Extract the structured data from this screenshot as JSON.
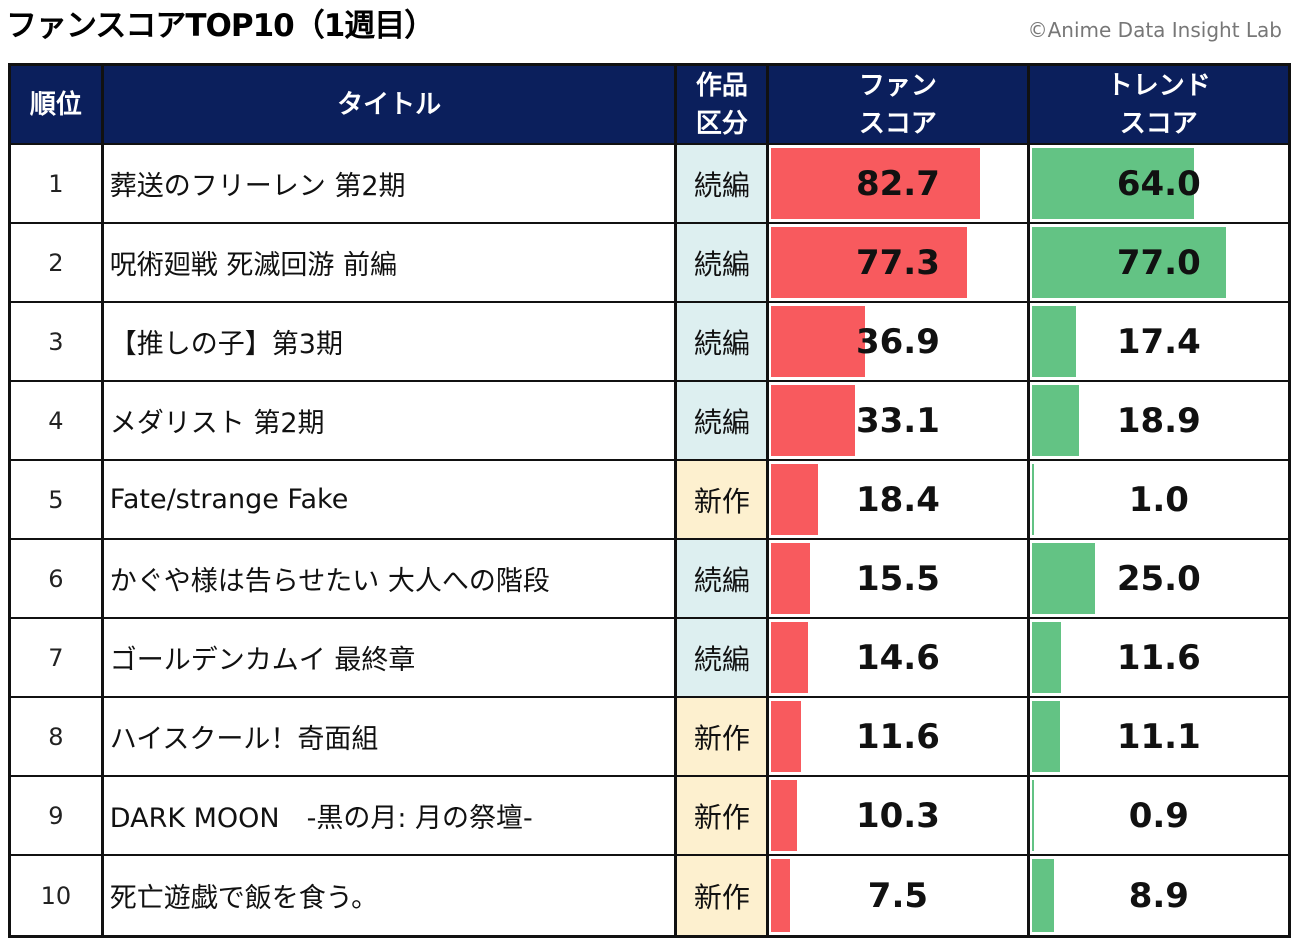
{
  "title": "ファンスコアTOP10（1週目）",
  "credit": "©Anime Data Insight Lab",
  "colors": {
    "header": "#0B1F5C",
    "fan_bar": "#F85A5E",
    "trend_bar": "#63C384",
    "sequel_bg": "#DDEFF0",
    "new_bg": "#FDF0CF"
  },
  "chart_data": {
    "type": "table",
    "headers": [
      "順位",
      "タイトル",
      "作品\n区分",
      "ファン\nスコア",
      "トレンド\nスコア"
    ],
    "bar_max": 100,
    "rows": [
      {
        "rank": "1",
        "title": "葬送のフリーレン 第2期",
        "category": "続編",
        "fan": "82.7",
        "trend": "64.0"
      },
      {
        "rank": "2",
        "title": "呪術廻戦 死滅回游 前編",
        "category": "続編",
        "fan": "77.3",
        "trend": "77.0"
      },
      {
        "rank": "3",
        "title": "【推しの子】第3期",
        "category": "続編",
        "fan": "36.9",
        "trend": "17.4"
      },
      {
        "rank": "4",
        "title": "メダリスト 第2期",
        "category": "続編",
        "fan": "33.1",
        "trend": "18.9"
      },
      {
        "rank": "5",
        "title": "Fate/strange Fake",
        "category": "新作",
        "fan": "18.4",
        "trend": "1.0"
      },
      {
        "rank": "6",
        "title": "かぐや様は告らせたい 大人への階段",
        "category": "続編",
        "fan": "15.5",
        "trend": "25.0"
      },
      {
        "rank": "7",
        "title": "ゴールデンカムイ 最終章",
        "category": "続編",
        "fan": "14.6",
        "trend": "11.6"
      },
      {
        "rank": "8",
        "title": "ハイスクール！奇面組",
        "category": "新作",
        "fan": "11.6",
        "trend": "11.1"
      },
      {
        "rank": "9",
        "title": "DARK MOON　-黒の月: 月の祭壇-",
        "category": "新作",
        "fan": "10.3",
        "trend": "0.9"
      },
      {
        "rank": "10",
        "title": "死亡遊戯で飯を食う。",
        "category": "新作",
        "fan": "7.5",
        "trend": "8.9"
      }
    ]
  }
}
